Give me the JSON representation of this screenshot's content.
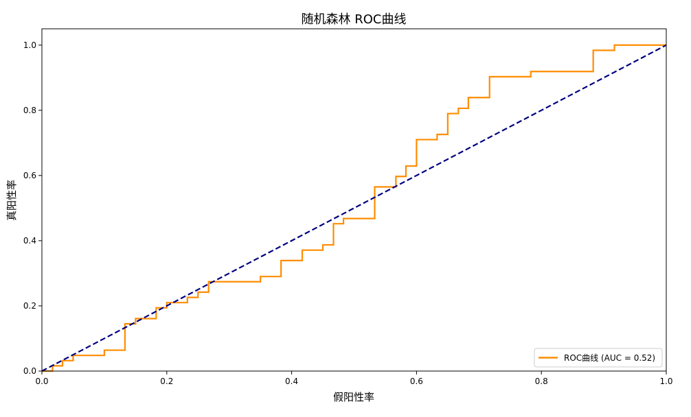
{
  "chart_data": {
    "type": "line",
    "title": "随机森林 ROC曲线",
    "xlabel": "假阳性率",
    "ylabel": "真阳性率",
    "xlim": [
      0.0,
      1.0
    ],
    "ylim": [
      0.0,
      1.05
    ],
    "xticks": [
      "0.0",
      "0.2",
      "0.4",
      "0.6",
      "0.8",
      "1.0"
    ],
    "yticks": [
      "0.0",
      "0.2",
      "0.4",
      "0.6",
      "0.8",
      "1.0"
    ],
    "grid": false,
    "legend_position": "lower-right",
    "series": [
      {
        "name": "ROC曲线 (AUC = 0.52)",
        "color": "#ff8c00",
        "style": "solid",
        "step": true,
        "points": [
          [
            0.0,
            0.0
          ],
          [
            0.017,
            0.0
          ],
          [
            0.017,
            0.016
          ],
          [
            0.033,
            0.016
          ],
          [
            0.033,
            0.032
          ],
          [
            0.05,
            0.032
          ],
          [
            0.05,
            0.048
          ],
          [
            0.1,
            0.048
          ],
          [
            0.1,
            0.064
          ],
          [
            0.133,
            0.064
          ],
          [
            0.133,
            0.145
          ],
          [
            0.15,
            0.145
          ],
          [
            0.15,
            0.161
          ],
          [
            0.183,
            0.161
          ],
          [
            0.183,
            0.194
          ],
          [
            0.2,
            0.194
          ],
          [
            0.2,
            0.21
          ],
          [
            0.233,
            0.21
          ],
          [
            0.233,
            0.226
          ],
          [
            0.25,
            0.226
          ],
          [
            0.25,
            0.242
          ],
          [
            0.267,
            0.242
          ],
          [
            0.267,
            0.274
          ],
          [
            0.35,
            0.274
          ],
          [
            0.35,
            0.29
          ],
          [
            0.383,
            0.29
          ],
          [
            0.383,
            0.339
          ],
          [
            0.417,
            0.339
          ],
          [
            0.417,
            0.371
          ],
          [
            0.45,
            0.371
          ],
          [
            0.45,
            0.387
          ],
          [
            0.467,
            0.387
          ],
          [
            0.467,
            0.452
          ],
          [
            0.483,
            0.452
          ],
          [
            0.483,
            0.468
          ],
          [
            0.533,
            0.468
          ],
          [
            0.533,
            0.565
          ],
          [
            0.567,
            0.565
          ],
          [
            0.567,
            0.597
          ],
          [
            0.583,
            0.597
          ],
          [
            0.583,
            0.629
          ],
          [
            0.6,
            0.629
          ],
          [
            0.6,
            0.71
          ],
          [
            0.633,
            0.71
          ],
          [
            0.633,
            0.726
          ],
          [
            0.65,
            0.726
          ],
          [
            0.65,
            0.79
          ],
          [
            0.667,
            0.79
          ],
          [
            0.667,
            0.806
          ],
          [
            0.683,
            0.806
          ],
          [
            0.683,
            0.839
          ],
          [
            0.717,
            0.839
          ],
          [
            0.717,
            0.903
          ],
          [
            0.783,
            0.903
          ],
          [
            0.783,
            0.919
          ],
          [
            0.883,
            0.919
          ],
          [
            0.883,
            0.984
          ],
          [
            0.917,
            0.984
          ],
          [
            0.917,
            1.0
          ],
          [
            1.0,
            1.0
          ]
        ]
      },
      {
        "name": "",
        "color": "#000080",
        "style": "dashed",
        "points": [
          [
            0.0,
            0.0
          ],
          [
            1.0,
            1.0
          ]
        ]
      }
    ]
  }
}
